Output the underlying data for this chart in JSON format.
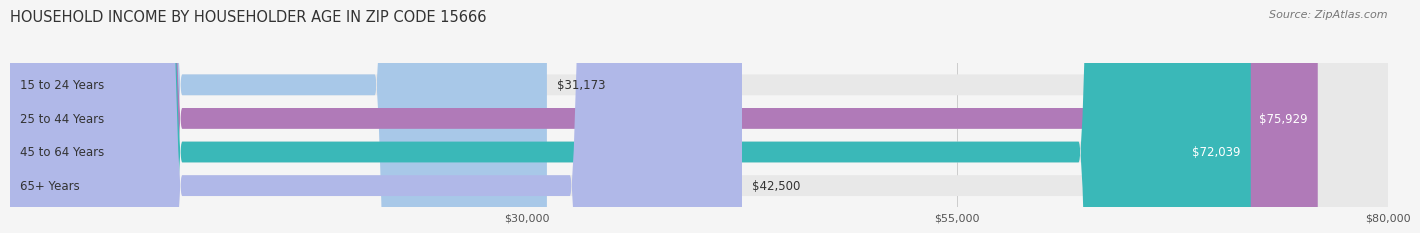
{
  "title": "HOUSEHOLD INCOME BY HOUSEHOLDER AGE IN ZIP CODE 15666",
  "source": "Source: ZipAtlas.com",
  "categories": [
    "15 to 24 Years",
    "25 to 44 Years",
    "45 to 64 Years",
    "65+ Years"
  ],
  "values": [
    31173,
    75929,
    72039,
    42500
  ],
  "value_labels": [
    "$31,173",
    "$75,929",
    "$72,039",
    "$42,500"
  ],
  "bar_colors": [
    "#a8c8e8",
    "#b07ab8",
    "#3ab8b8",
    "#b0b8e8"
  ],
  "bar_bg_color": "#e8e8e8",
  "xmin": 0,
  "xmax": 80000,
  "xticks": [
    30000,
    55000,
    80000
  ],
  "xtick_labels": [
    "$30,000",
    "$55,000",
    "$80,000"
  ],
  "title_fontsize": 10.5,
  "source_fontsize": 8,
  "label_fontsize": 8.5,
  "value_fontsize": 8.5,
  "background_color": "#f5f5f5",
  "bar_height": 0.62,
  "rounding_size": 10000
}
